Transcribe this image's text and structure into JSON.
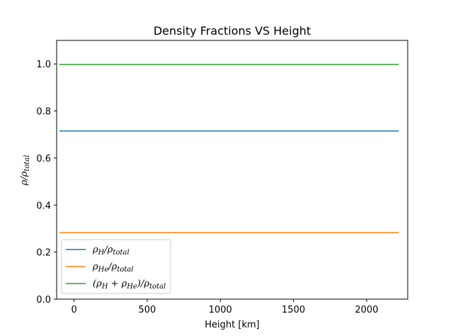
{
  "chart_data": {
    "type": "line",
    "title": "Density Fractions VS Height",
    "xlabel": "Height [km]",
    "ylabel": "ρ/ρ_total",
    "xlim": [
      -119,
      2281
    ],
    "ylim": [
      0.0,
      1.1
    ],
    "xticks": [
      "0",
      "500",
      "1000",
      "1500",
      "2000"
    ],
    "yticks": [
      "0.0",
      "0.2",
      "0.4",
      "0.6",
      "0.8",
      "1.0"
    ],
    "grid": false,
    "legend_position": "lower-left",
    "series": [
      {
        "name": "ρ_H/ρ_total",
        "color": "#1f77b4",
        "x": [
          -100,
          2220
        ],
        "values": [
          0.715,
          0.715
        ]
      },
      {
        "name": "ρ_He/ρ_total",
        "color": "#ff7f0e",
        "x": [
          -100,
          2220
        ],
        "values": [
          0.283,
          0.283
        ]
      },
      {
        "name": "(ρ_H+ρ_He)/ρ_total",
        "color": "#2ca02c",
        "x": [
          -100,
          2220
        ],
        "values": [
          0.998,
          0.998
        ]
      }
    ]
  }
}
